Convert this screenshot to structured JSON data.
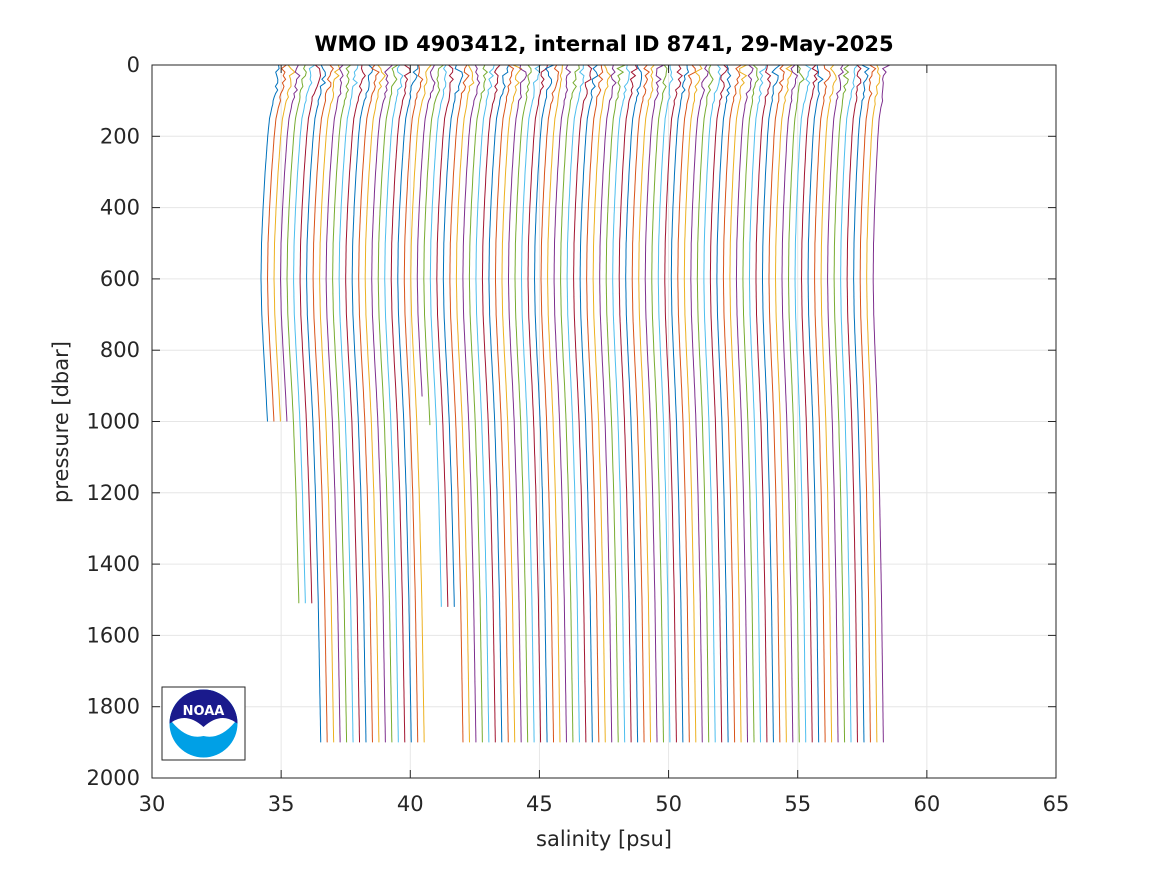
{
  "chart_data": {
    "type": "line",
    "title": "WMO ID 4903412, internal ID 8741, 29-May-2025",
    "xlabel": "salinity [psu]",
    "ylabel": "pressure [dbar]",
    "xlim": [
      30,
      65
    ],
    "ylim": [
      0,
      2000
    ],
    "y_reversed": true,
    "grid": true,
    "xticks": [
      30,
      35,
      40,
      45,
      50,
      55,
      60,
      65
    ],
    "yticks": [
      0,
      200,
      400,
      600,
      800,
      1000,
      1200,
      1400,
      1600,
      1800,
      2000
    ],
    "series_colors": [
      "#0072BD",
      "#D95319",
      "#EDB120",
      "#7E2F8E",
      "#77AC30",
      "#4DBEEE",
      "#A2142F"
    ],
    "profiles": {
      "description_offsets": "each profile is offset by +0.25 psu from the previous one",
      "count": 95,
      "first_offset_salinity": 34.9,
      "offset_step": 0.25,
      "base_shape": [
        {
          "p": 0,
          "s": 0.0
        },
        {
          "p": 30,
          "s": 0.0
        },
        {
          "p": 60,
          "s": -0.05
        },
        {
          "p": 100,
          "s": -0.2
        },
        {
          "p": 150,
          "s": -0.35
        },
        {
          "p": 200,
          "s": -0.42
        },
        {
          "p": 300,
          "s": -0.52
        },
        {
          "p": 400,
          "s": -0.6
        },
        {
          "p": 500,
          "s": -0.66
        },
        {
          "p": 600,
          "s": -0.68
        },
        {
          "p": 700,
          "s": -0.65
        },
        {
          "p": 800,
          "s": -0.58
        },
        {
          "p": 900,
          "s": -0.5
        },
        {
          "p": 1000,
          "s": -0.43
        },
        {
          "p": 1200,
          "s": -0.33
        },
        {
          "p": 1500,
          "s": -0.22
        },
        {
          "p": 1900,
          "s": -0.12
        }
      ],
      "max_pressures": [
        1000,
        1000,
        1000,
        1000,
        1510,
        1510,
        1510,
        1900,
        1900,
        1900,
        1900,
        1900,
        1900,
        1900,
        1900,
        1900,
        1900,
        1900,
        1900,
        1900,
        1900,
        1900,
        1900,
        1900,
        930,
        1010,
        1520,
        1520,
        1520,
        1900
      ]
    }
  },
  "logo": {
    "name": "NOAA",
    "text": "NOAA",
    "colors": {
      "dark": "#1a1a8c",
      "light": "#00a0e6"
    }
  }
}
